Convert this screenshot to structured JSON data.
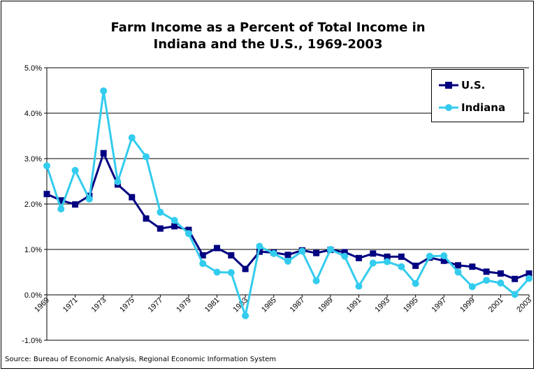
{
  "chart_data": {
    "type": "line",
    "title": [
      "Farm Income as a Percent of Total Income in",
      "Indiana and the U.S., 1969-2003"
    ],
    "source": "Source: Bureau of Economic Analysis, Regional Economic Information System",
    "x": [
      1969,
      1970,
      1971,
      1972,
      1973,
      1974,
      1975,
      1976,
      1977,
      1978,
      1979,
      1980,
      1981,
      1982,
      1983,
      1984,
      1985,
      1986,
      1987,
      1988,
      1989,
      1990,
      1991,
      1992,
      1993,
      1994,
      1995,
      1996,
      1997,
      1998,
      1999,
      2000,
      2001,
      2002,
      2003
    ],
    "x_tick_labels": [
      "1969",
      "1971",
      "1973",
      "1975",
      "1977",
      "1979",
      "1981",
      "1983",
      "1985",
      "1987",
      "1989",
      "1991",
      "1993",
      "1995",
      "1997",
      "1999",
      "2001",
      "2003"
    ],
    "ylim": [
      -1.0,
      5.0
    ],
    "y_tick_labels": [
      "-1.0%",
      "0.0%",
      "1.0%",
      "2.0%",
      "3.0%",
      "4.0%",
      "5.0%"
    ],
    "y_ticks": [
      -1,
      0,
      1,
      2,
      3,
      4,
      5
    ],
    "grid": "horizontal",
    "legend_position": "top-right",
    "series": [
      {
        "name": "U.S.",
        "color": "#000080",
        "marker": "square",
        "values": [
          2.22,
          2.08,
          1.99,
          2.18,
          3.12,
          2.43,
          2.15,
          1.68,
          1.46,
          1.51,
          1.43,
          0.87,
          1.03,
          0.87,
          0.57,
          0.95,
          0.93,
          0.88,
          0.98,
          0.92,
          0.99,
          0.94,
          0.81,
          0.91,
          0.84,
          0.84,
          0.64,
          0.82,
          0.75,
          0.65,
          0.62,
          0.51,
          0.47,
          0.35,
          0.47
        ]
      },
      {
        "name": "Indiana",
        "color": "#33CCEE",
        "marker": "circle",
        "values": [
          2.84,
          1.89,
          2.74,
          2.11,
          4.49,
          2.49,
          3.46,
          3.04,
          1.82,
          1.64,
          1.35,
          0.69,
          0.5,
          0.49,
          -0.46,
          1.07,
          0.91,
          0.74,
          0.96,
          0.31,
          1.0,
          0.85,
          0.19,
          0.7,
          0.73,
          0.62,
          0.25,
          0.85,
          0.86,
          0.5,
          0.18,
          0.32,
          0.26,
          0.01,
          0.36
        ]
      }
    ]
  }
}
